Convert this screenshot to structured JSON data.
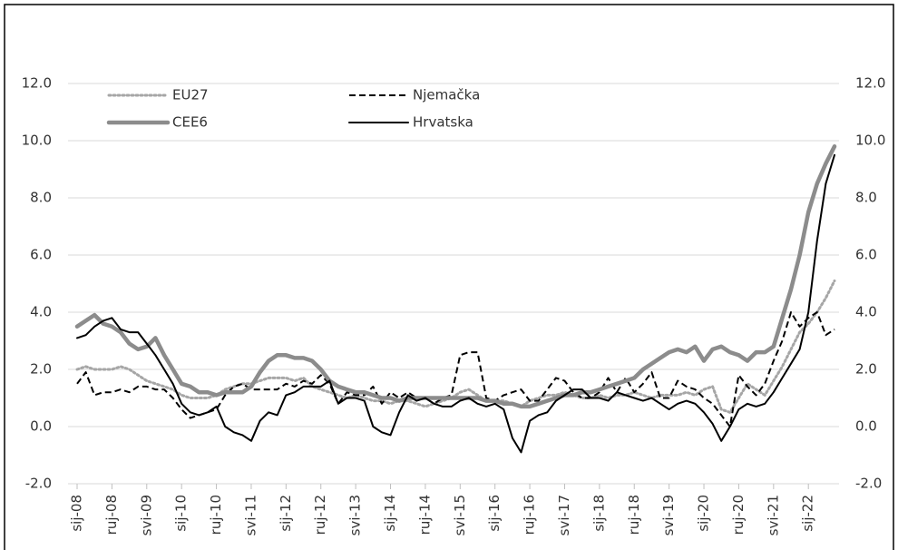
{
  "chart_data": {
    "type": "line",
    "categories": [
      "sij-08",
      null,
      null,
      null,
      "ruj-08",
      null,
      null,
      null,
      "svi-09",
      null,
      null,
      null,
      "sij-10",
      null,
      null,
      null,
      "ruj-10",
      null,
      null,
      null,
      "svi-11",
      null,
      null,
      null,
      "sij-12",
      null,
      null,
      null,
      "ruj-12",
      null,
      null,
      null,
      "svi-13",
      null,
      null,
      null,
      "sij-14",
      null,
      null,
      null,
      "ruj-14",
      null,
      null,
      null,
      "svi-15",
      null,
      null,
      null,
      "sij-16",
      null,
      null,
      null,
      "ruj-16",
      null,
      null,
      null,
      "svi-17",
      null,
      null,
      null,
      "sij-18",
      null,
      null,
      null,
      "ruj-18",
      null,
      null,
      null,
      "svi-19",
      null,
      null,
      null,
      "sij-20",
      null,
      null,
      null,
      "ruj-20",
      null,
      null,
      null,
      "svi-21",
      null,
      null,
      null,
      "sij-22",
      null,
      null,
      null
    ],
    "series": [
      {
        "name": "EU27",
        "color": "#a6a6a6",
        "dash": "dotted",
        "values": [
          2.0,
          2.1,
          2.0,
          2.0,
          2.0,
          2.1,
          2.0,
          1.8,
          1.6,
          1.5,
          1.4,
          1.3,
          1.1,
          1.0,
          1.0,
          1.0,
          1.1,
          1.3,
          1.4,
          1.5,
          1.5,
          1.6,
          1.7,
          1.7,
          1.7,
          1.6,
          1.7,
          1.4,
          1.3,
          1.2,
          1.1,
          1.0,
          1.1,
          1.0,
          0.9,
          0.9,
          0.8,
          0.9,
          0.9,
          0.8,
          0.7,
          0.8,
          0.9,
          1.0,
          1.2,
          1.3,
          1.1,
          0.9,
          0.9,
          0.9,
          0.8,
          0.7,
          0.9,
          1.0,
          1.1,
          1.1,
          1.2,
          1.1,
          1.0,
          1.0,
          1.1,
          1.0,
          1.1,
          1.1,
          1.2,
          1.1,
          1.0,
          1.1,
          1.1,
          1.1,
          1.2,
          1.1,
          1.3,
          1.4,
          0.6,
          0.5,
          1.0,
          1.5,
          1.3,
          1.1,
          1.6,
          2.1,
          2.7,
          3.3,
          3.6,
          4.0,
          4.5,
          5.1
        ]
      },
      {
        "name": "Njemačka",
        "color": "#000000",
        "dash": "dashed",
        "values": [
          1.5,
          1.9,
          1.1,
          1.2,
          1.2,
          1.3,
          1.2,
          1.4,
          1.4,
          1.3,
          1.3,
          1.0,
          0.6,
          0.3,
          0.4,
          0.5,
          0.6,
          1.1,
          1.4,
          1.5,
          1.3,
          1.3,
          1.3,
          1.3,
          1.5,
          1.4,
          1.6,
          1.5,
          1.8,
          1.5,
          0.8,
          1.2,
          1.1,
          1.1,
          1.4,
          0.8,
          1.2,
          1.0,
          1.2,
          1.0,
          1.0,
          0.8,
          1.0,
          1.1,
          2.5,
          2.6,
          2.6,
          1.0,
          0.9,
          1.1,
          1.2,
          1.3,
          0.9,
          0.9,
          1.3,
          1.7,
          1.6,
          1.2,
          1.0,
          1.0,
          1.2,
          1.7,
          1.2,
          1.7,
          1.2,
          1.5,
          1.9,
          1.0,
          1.0,
          1.6,
          1.4,
          1.3,
          1.0,
          0.8,
          0.4,
          0.0,
          1.8,
          1.4,
          1.1,
          1.5,
          2.3,
          3.0,
          4.0,
          3.5,
          3.8,
          4.0,
          3.2,
          3.4
        ]
      },
      {
        "name": "CEE6",
        "color": "#8c8c8c",
        "dash": "solid-thick",
        "values": [
          3.5,
          3.7,
          3.9,
          3.6,
          3.5,
          3.3,
          2.9,
          2.7,
          2.8,
          3.1,
          2.5,
          2.0,
          1.5,
          1.4,
          1.2,
          1.2,
          1.1,
          1.2,
          1.2,
          1.2,
          1.4,
          1.9,
          2.3,
          2.5,
          2.5,
          2.4,
          2.4,
          2.3,
          2.0,
          1.6,
          1.4,
          1.3,
          1.2,
          1.2,
          1.1,
          1.0,
          1.0,
          0.9,
          1.0,
          1.0,
          1.0,
          1.0,
          1.0,
          1.0,
          1.0,
          1.0,
          1.0,
          0.9,
          0.9,
          0.8,
          0.8,
          0.7,
          0.7,
          0.8,
          0.9,
          1.0,
          1.1,
          1.1,
          1.2,
          1.2,
          1.3,
          1.4,
          1.5,
          1.6,
          1.7,
          2.0,
          2.2,
          2.4,
          2.6,
          2.7,
          2.6,
          2.8,
          2.3,
          2.7,
          2.8,
          2.6,
          2.5,
          2.3,
          2.6,
          2.6,
          2.8,
          3.8,
          4.8,
          6.0,
          7.5,
          8.5,
          9.2,
          9.8
        ]
      },
      {
        "name": "Hrvatska",
        "color": "#000000",
        "dash": "solid",
        "values": [
          3.1,
          3.2,
          3.5,
          3.7,
          3.8,
          3.4,
          3.3,
          3.3,
          2.9,
          2.5,
          2.0,
          1.5,
          0.8,
          0.5,
          0.4,
          0.5,
          0.7,
          0.0,
          -0.2,
          -0.3,
          -0.5,
          0.2,
          0.5,
          0.4,
          1.1,
          1.2,
          1.4,
          1.4,
          1.4,
          1.6,
          0.8,
          1.0,
          1.0,
          0.9,
          0.0,
          -0.2,
          -0.3,
          0.5,
          1.1,
          0.9,
          1.0,
          0.8,
          0.7,
          0.7,
          0.9,
          1.0,
          0.8,
          0.7,
          0.8,
          0.6,
          -0.4,
          -0.9,
          0.2,
          0.4,
          0.5,
          0.9,
          1.1,
          1.3,
          1.3,
          1.0,
          1.0,
          0.9,
          1.2,
          1.1,
          1.0,
          0.9,
          1.0,
          0.8,
          0.6,
          0.8,
          0.9,
          0.8,
          0.5,
          0.1,
          -0.5,
          0.0,
          0.6,
          0.8,
          0.7,
          0.8,
          1.2,
          1.7,
          2.2,
          2.7,
          4.0,
          6.5,
          8.5,
          9.5
        ]
      }
    ],
    "ylim": [
      -2,
      12
    ],
    "yticks": [
      {
        "value": -2,
        "label": "-2.0"
      },
      {
        "value": 0,
        "label": "0.0"
      },
      {
        "value": 2,
        "label": "2.0"
      },
      {
        "value": 4,
        "label": "4.0"
      },
      {
        "value": 6,
        "label": "6.0"
      },
      {
        "value": 8,
        "label": "8.0"
      },
      {
        "value": 10,
        "label": "10.0"
      },
      {
        "value": 12,
        "label": "12.0"
      }
    ],
    "grid": true
  }
}
